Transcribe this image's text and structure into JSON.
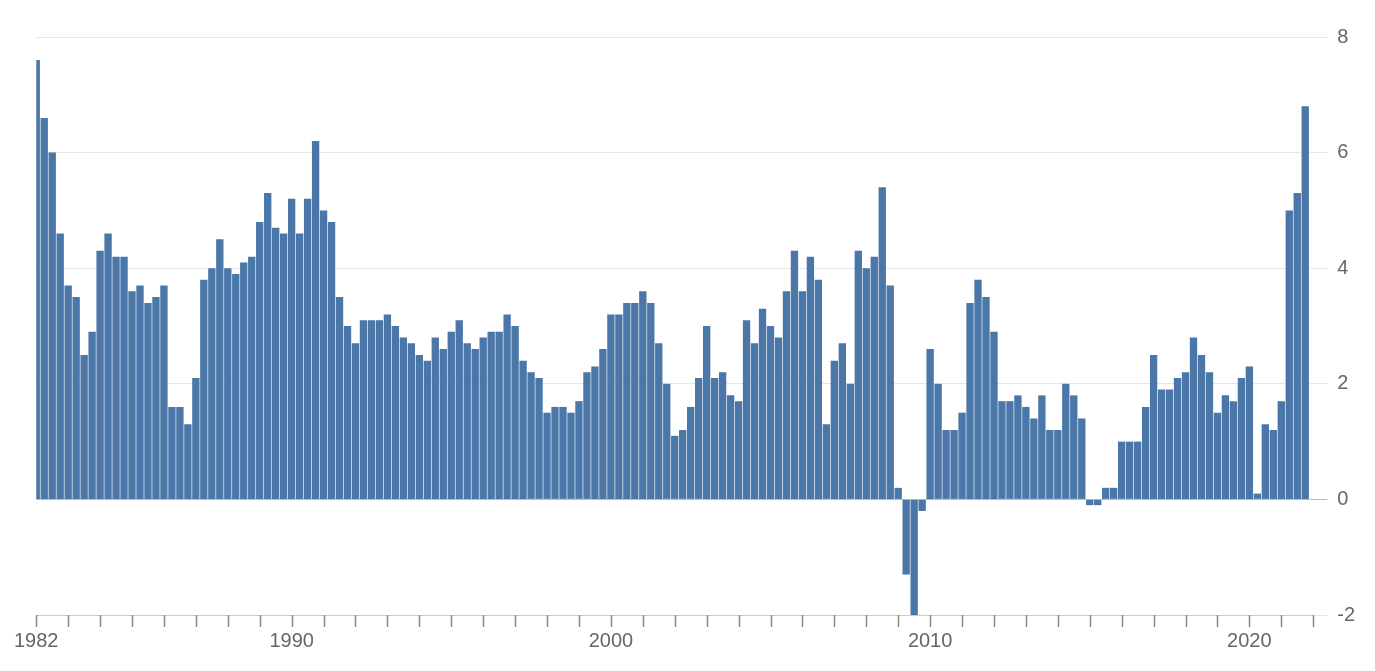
{
  "chart_data": {
    "type": "bar",
    "color": "#4a76a8",
    "x": [
      1982,
      1982.25,
      1982.5,
      1982.75,
      1983,
      1983.25,
      1983.5,
      1983.75,
      1984,
      1984.25,
      1984.5,
      1984.75,
      1985,
      1985.25,
      1985.5,
      1985.75,
      1986,
      1986.25,
      1986.5,
      1986.75,
      1987,
      1987.25,
      1987.5,
      1987.75,
      1988,
      1988.25,
      1988.5,
      1988.75,
      1989,
      1989.25,
      1989.5,
      1989.75,
      1990,
      1990.25,
      1990.5,
      1990.75,
      1991,
      1991.25,
      1991.5,
      1991.75,
      1992,
      1992.25,
      1992.5,
      1992.75,
      1993,
      1993.25,
      1993.5,
      1993.75,
      1994,
      1994.25,
      1994.5,
      1994.75,
      1995,
      1995.25,
      1995.5,
      1995.75,
      1996,
      1996.25,
      1996.5,
      1996.75,
      1997,
      1997.25,
      1997.5,
      1997.75,
      1998,
      1998.25,
      1998.5,
      1998.75,
      1999,
      1999.25,
      1999.5,
      1999.75,
      2000,
      2000.25,
      2000.5,
      2000.75,
      2001,
      2001.25,
      2001.5,
      2001.75,
      2002,
      2002.25,
      2002.5,
      2002.75,
      2003,
      2003.25,
      2003.5,
      2003.75,
      2004,
      2004.25,
      2004.5,
      2004.75,
      2005,
      2005.25,
      2005.5,
      2005.75,
      2006,
      2006.25,
      2006.5,
      2006.75,
      2007,
      2007.25,
      2007.5,
      2007.75,
      2008,
      2008.25,
      2008.5,
      2008.75,
      2009,
      2009.25,
      2009.5,
      2009.75,
      2010,
      2010.25,
      2010.5,
      2010.75,
      2011,
      2011.25,
      2011.5,
      2011.75,
      2012,
      2012.25,
      2012.5,
      2012.75,
      2013,
      2013.25,
      2013.5,
      2013.75,
      2014,
      2014.25,
      2014.5,
      2014.75,
      2015,
      2015.25,
      2015.5,
      2015.75,
      2016,
      2016.25,
      2016.5,
      2016.75,
      2017,
      2017.25,
      2017.5,
      2017.75,
      2018,
      2018.25,
      2018.5,
      2018.75,
      2019,
      2019.25,
      2019.5,
      2019.75,
      2020,
      2020.25,
      2020.5,
      2020.75,
      2021,
      2021.25,
      2021.5,
      2021.75
    ],
    "values": [
      7.6,
      6.6,
      6.0,
      4.6,
      3.7,
      3.5,
      2.5,
      2.9,
      4.3,
      4.6,
      4.2,
      4.2,
      3.6,
      3.7,
      3.4,
      3.5,
      3.7,
      1.6,
      1.6,
      1.3,
      2.1,
      3.8,
      4.0,
      4.5,
      4.0,
      3.9,
      4.1,
      4.2,
      4.8,
      5.3,
      4.7,
      4.6,
      5.2,
      4.6,
      5.2,
      6.2,
      5.0,
      4.8,
      3.5,
      3.0,
      2.7,
      3.1,
      3.1,
      3.1,
      3.2,
      3.0,
      2.8,
      2.7,
      2.5,
      2.4,
      2.8,
      2.6,
      2.9,
      3.1,
      2.7,
      2.6,
      2.8,
      2.9,
      2.9,
      3.2,
      3.0,
      2.4,
      2.2,
      2.1,
      1.5,
      1.6,
      1.6,
      1.5,
      1.7,
      2.2,
      2.3,
      2.6,
      3.2,
      3.2,
      3.4,
      3.4,
      3.6,
      3.4,
      2.7,
      2.0,
      1.1,
      1.2,
      1.6,
      2.1,
      3.0,
      2.1,
      2.2,
      1.8,
      1.7,
      3.1,
      2.7,
      3.3,
      3.0,
      2.8,
      3.6,
      4.3,
      3.6,
      4.2,
      3.8,
      1.3,
      2.4,
      2.7,
      2.0,
      4.3,
      4.0,
      4.2,
      5.4,
      3.7,
      0.2,
      -1.3,
      -2.0,
      -0.2,
      2.6,
      2.0,
      1.2,
      1.2,
      1.5,
      3.4,
      3.8,
      3.5,
      2.9,
      1.7,
      1.7,
      1.8,
      1.6,
      1.4,
      1.8,
      1.2,
      1.2,
      2.0,
      1.8,
      1.4,
      -0.1,
      -0.1,
      0.2,
      0.2,
      1.0,
      1.0,
      1.0,
      1.6,
      2.5,
      1.9,
      1.9,
      2.1,
      2.2,
      2.8,
      2.5,
      2.2,
      1.5,
      1.8,
      1.7,
      2.1,
      2.3,
      0.1,
      1.3,
      1.2,
      1.7,
      5.0,
      5.3,
      6.8
    ],
    "xlim": [
      1982,
      2022
    ],
    "xticks": [
      {
        "value": 1982,
        "label": "1982"
      },
      {
        "value": 1983,
        "label": null
      },
      {
        "value": 1984,
        "label": null
      },
      {
        "value": 1985,
        "label": null
      },
      {
        "value": 1986,
        "label": null
      },
      {
        "value": 1987,
        "label": null
      },
      {
        "value": 1988,
        "label": null
      },
      {
        "value": 1989,
        "label": null
      },
      {
        "value": 1990,
        "label": "1990"
      },
      {
        "value": 1991,
        "label": null
      },
      {
        "value": 1992,
        "label": null
      },
      {
        "value": 1993,
        "label": null
      },
      {
        "value": 1994,
        "label": null
      },
      {
        "value": 1995,
        "label": null
      },
      {
        "value": 1996,
        "label": null
      },
      {
        "value": 1997,
        "label": null
      },
      {
        "value": 1998,
        "label": null
      },
      {
        "value": 1999,
        "label": null
      },
      {
        "value": 2000,
        "label": "2000"
      },
      {
        "value": 2001,
        "label": null
      },
      {
        "value": 2002,
        "label": null
      },
      {
        "value": 2003,
        "label": null
      },
      {
        "value": 2004,
        "label": null
      },
      {
        "value": 2005,
        "label": null
      },
      {
        "value": 2006,
        "label": null
      },
      {
        "value": 2007,
        "label": null
      },
      {
        "value": 2008,
        "label": null
      },
      {
        "value": 2009,
        "label": null
      },
      {
        "value": 2010,
        "label": "2010"
      },
      {
        "value": 2011,
        "label": null
      },
      {
        "value": 2012,
        "label": null
      },
      {
        "value": 2013,
        "label": null
      },
      {
        "value": 2014,
        "label": null
      },
      {
        "value": 2015,
        "label": null
      },
      {
        "value": 2016,
        "label": null
      },
      {
        "value": 2017,
        "label": null
      },
      {
        "value": 2018,
        "label": null
      },
      {
        "value": 2019,
        "label": null
      },
      {
        "value": 2020,
        "label": "2020"
      },
      {
        "value": 2021,
        "label": null
      },
      {
        "value": 2022,
        "label": null
      }
    ],
    "ylim": [
      -2,
      8
    ],
    "yticks": [
      -2,
      0,
      2,
      4,
      6,
      8
    ],
    "grid": "y",
    "legend": false
  }
}
